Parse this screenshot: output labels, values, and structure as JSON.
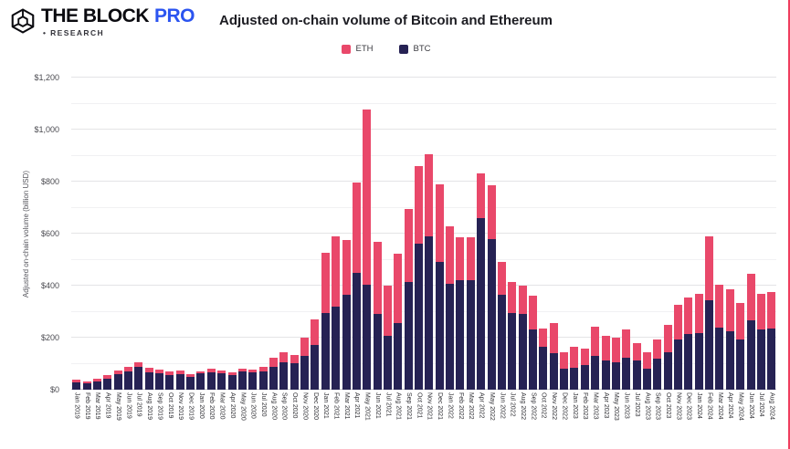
{
  "brand": {
    "name": "THE BLOCK",
    "pro": "PRO",
    "research": "• RESEARCH",
    "pro_color": "#2b54f0",
    "logo_color": "#0b0b10"
  },
  "header": {
    "title": "Adjusted on-chain volume of Bitcoin and Ethereum"
  },
  "legend": [
    {
      "label": "ETH",
      "color": "#e9486a"
    },
    {
      "label": "BTC",
      "color": "#262254"
    }
  ],
  "accent_border_color": "#ef3e5e",
  "chart_data": {
    "type": "bar",
    "stacked": true,
    "title": "Adjusted on-chain volume of Bitcoin and Ethereum",
    "xlabel": "",
    "ylabel": "Adjusted on-chain volume (billion USD)",
    "ylim": [
      0,
      1200
    ],
    "grid": "horizontal",
    "legend_position": "top",
    "y_ticks": [
      {
        "value": 0,
        "label": "$0"
      },
      {
        "value": 200,
        "label": "$200"
      },
      {
        "value": 400,
        "label": "$400"
      },
      {
        "value": 600,
        "label": "$600"
      },
      {
        "value": 800,
        "label": "$800"
      },
      {
        "value": 1000,
        "label": "$1,000"
      },
      {
        "value": 1200,
        "label": "$1,200"
      }
    ],
    "minor_grid_step": 100,
    "categories": [
      "Jan 2019",
      "Feb 2019",
      "Mar 2019",
      "Apr 2019",
      "May 2019",
      "Jun 2019",
      "Jul 2019",
      "Aug 2019",
      "Sep 2019",
      "Oct 2019",
      "Nov 2019",
      "Dec 2019",
      "Jan 2020",
      "Feb 2020",
      "Mar 2020",
      "Apr 2020",
      "May 2020",
      "Jun 2020",
      "Jul 2020",
      "Aug 2020",
      "Sep 2020",
      "Oct 2020",
      "Nov 2020",
      "Dec 2020",
      "Jan 2021",
      "Feb 2021",
      "Mar 2021",
      "Apr 2021",
      "May 2021",
      "Jun 2021",
      "Jul 2021",
      "Aug 2021",
      "Sep 2021",
      "Oct 2021",
      "Nov 2021",
      "Dec 2021",
      "Jan 2022",
      "Feb 2022",
      "Mar 2022",
      "Apr 2022",
      "May 2022",
      "Jun 2022",
      "Jul 2022",
      "Aug 2022",
      "Sep 2022",
      "Oct 2022",
      "Nov 2022",
      "Dec 2022",
      "Jan 2023",
      "Feb 2023",
      "Mar 2023",
      "Apr 2023",
      "May 2023",
      "Jun 2023",
      "Jul 2023",
      "Aug 2023",
      "Sep 2023",
      "Oct 2023",
      "Nov 2023",
      "Dec 2023",
      "Jan 2024",
      "Feb 2024",
      "Mar 2024",
      "Apr 2024",
      "May 2024",
      "Jun 2024",
      "Jul 2024",
      "Aug 2024"
    ],
    "series": [
      {
        "name": "BTC",
        "color": "#262254",
        "values": [
          27,
          23,
          31,
          43,
          58,
          71,
          87,
          68,
          63,
          56,
          60,
          50,
          62,
          68,
          62,
          57,
          70,
          65,
          69,
          87,
          105,
          103,
          130,
          173,
          294,
          319,
          366,
          449,
          405,
          290,
          206,
          255,
          414,
          560,
          590,
          492,
          407,
          422,
          422,
          660,
          578,
          365,
          294,
          291,
          232,
          165,
          142,
          80,
          85,
          95,
          130,
          112,
          104,
          122,
          112,
          80,
          118,
          144,
          194,
          215,
          218,
          343,
          237,
          223,
          193,
          265,
          230,
          235
        ]
      },
      {
        "name": "ETH",
        "color": "#e9486a",
        "values": [
          10,
          8,
          11,
          14,
          16,
          18,
          19,
          15,
          14,
          13,
          14,
          10,
          8,
          12,
          12,
          11,
          12,
          11,
          18,
          35,
          40,
          30,
          70,
          97,
          234,
          271,
          211,
          347,
          672,
          278,
          195,
          267,
          281,
          299,
          315,
          296,
          220,
          164,
          164,
          172,
          207,
          127,
          119,
          108,
          129,
          70,
          114,
          64,
          80,
          64,
          113,
          94,
          96,
          110,
          67,
          64,
          74,
          106,
          131,
          139,
          152,
          245,
          168,
          164,
          142,
          180,
          140,
          140
        ]
      }
    ]
  }
}
